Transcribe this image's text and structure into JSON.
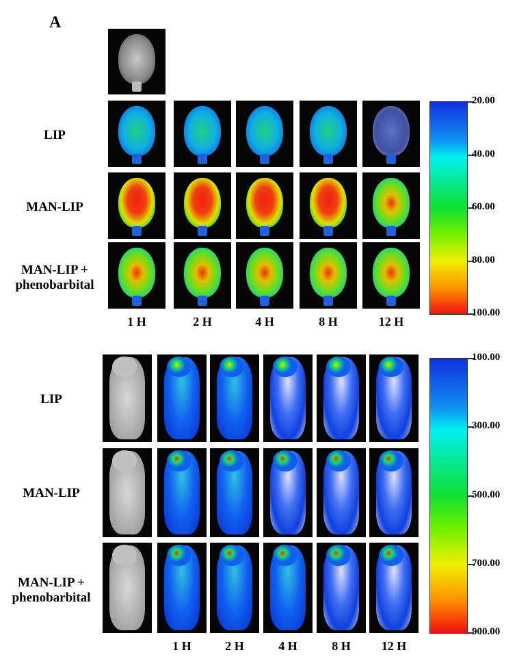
{
  "panel_label": "A",
  "top_panel": {
    "row_labels": [
      "LIP",
      "MAN-LIP",
      "MAN-LIP +\nphenobarbital"
    ],
    "time_labels": [
      "1 H",
      "2 H",
      "4 H",
      "8 H",
      "12 H"
    ],
    "colorbar": {
      "labels": [
        "20.00",
        "40.00",
        "60.00",
        "80.00",
        "100.00"
      ]
    }
  },
  "bottom_panel": {
    "row_labels": [
      "LIP",
      "MAN-LIP",
      "MAN-LIP +\nphenobarbital"
    ],
    "time_labels": [
      "1 H",
      "2 H",
      "4 H",
      "8 H",
      "12 H"
    ],
    "colorbar": {
      "labels": [
        "100.00",
        "300.00",
        "500.00",
        "700.00",
        "900.00"
      ]
    }
  }
}
